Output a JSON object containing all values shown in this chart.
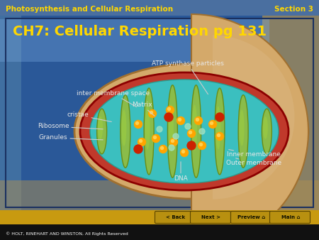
{
  "title_bar_text": "Photosynthesis and Cellular Respiration",
  "title_bar_right": "Section 3",
  "title_bar_color": "#5a7db0",
  "title_bar_text_color": "#FFD700",
  "main_title": "CH7: Cellular Respiration pg 131",
  "main_title_color": "#FFD700",
  "main_bg_color": "#2a5898",
  "bottom_bar_color": "#c89a10",
  "footer_bar_color": "#111111",
  "footer_text": "© HOLT, RINEHART AND WINSTON, All Rights Reserved",
  "footer_text_color": "#ffffff",
  "button_texts": [
    "< Back",
    "Next >",
    "Preview ⌂",
    "Main ⌂"
  ],
  "outer_membrane_color": "#d4a96a",
  "inner_membrane_color": "#c0392b",
  "matrix_color": "#3bbfbf",
  "cristae_color_center": "#8fbc44",
  "cristae_color_edge": "#c8b400",
  "label_color": "#e8e8e8",
  "ground_color_left": "#c89a10",
  "ground_color_right": "#c89a10",
  "sky_left_color": "#7ba8d0",
  "sky_right_color": "#b8a060"
}
